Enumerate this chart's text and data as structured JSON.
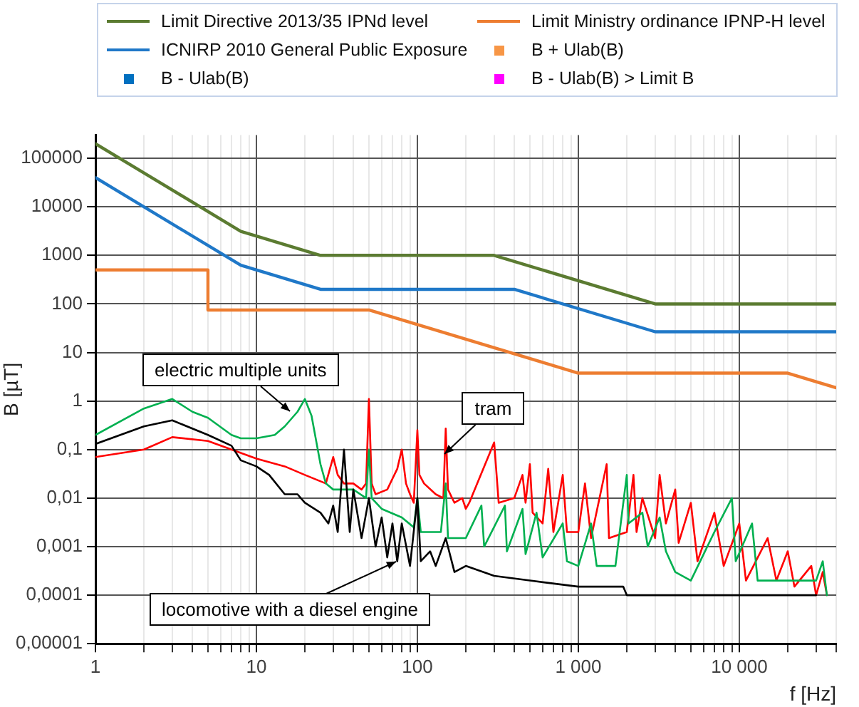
{
  "chart_data": {
    "type": "line",
    "xlabel": "f [Hz]",
    "ylabel": "B [µT]",
    "log": "xy",
    "grid": true,
    "legend": "top",
    "marker": "none",
    "xlim": [
      1,
      40000
    ],
    "ylim": [
      1e-05,
      300000
    ],
    "xticks": [
      1,
      {
        "value": 2,
        "label": null
      },
      {
        "value": 3,
        "label": null
      },
      {
        "value": 4,
        "label": null
      },
      {
        "value": 5,
        "label": null
      },
      {
        "value": 6,
        "label": null
      },
      {
        "value": 7,
        "label": null
      },
      {
        "value": 8,
        "label": null
      },
      {
        "value": 9,
        "label": null
      },
      10,
      {
        "value": 20,
        "label": null
      },
      {
        "value": 30,
        "label": null
      },
      {
        "value": 40,
        "label": null
      },
      {
        "value": 50,
        "label": null
      },
      {
        "value": 60,
        "label": null
      },
      {
        "value": 70,
        "label": null
      },
      {
        "value": 80,
        "label": null
      },
      {
        "value": 90,
        "label": null
      },
      100,
      {
        "value": 200,
        "label": null
      },
      {
        "value": 300,
        "label": null
      },
      {
        "value": 400,
        "label": null
      },
      {
        "value": 500,
        "label": null
      },
      {
        "value": 600,
        "label": null
      },
      {
        "value": 700,
        "label": null
      },
      {
        "value": 800,
        "label": null
      },
      {
        "value": 900,
        "label": null
      },
      {
        "value": 1000,
        "label": "1 000"
      },
      {
        "value": 2000,
        "label": null
      },
      {
        "value": 3000,
        "label": null
      },
      {
        "value": 4000,
        "label": null
      },
      {
        "value": 5000,
        "label": null
      },
      {
        "value": 6000,
        "label": null
      },
      {
        "value": 7000,
        "label": null
      },
      {
        "value": 8000,
        "label": null
      },
      {
        "value": 9000,
        "label": null
      },
      {
        "value": 10000,
        "label": "10 000"
      },
      {
        "value": 20000,
        "label": null
      },
      {
        "value": 30000,
        "label": null
      },
      {
        "value": 40000,
        "label": null
      }
    ],
    "yticks": [
      {
        "value": 1e-05,
        "label": "0,00001"
      },
      {
        "value": 0.0001,
        "label": "0,0001"
      },
      {
        "value": 0.001,
        "label": "0,001"
      },
      {
        "value": 0.01,
        "label": "0,01"
      },
      {
        "value": 0.1,
        "label": "0,1"
      },
      1,
      10,
      100,
      1000,
      10000,
      100000
    ],
    "series": [
      {
        "color": "#ff0000",
        "x": [
          1,
          2,
          3,
          5,
          7,
          10,
          15,
          20,
          27,
          30,
          32,
          35,
          40,
          45,
          48,
          50,
          52,
          55,
          65,
          70,
          75,
          80,
          85,
          90,
          95,
          100,
          103,
          110,
          130,
          145,
          150,
          155,
          170,
          190,
          200,
          210,
          300,
          320,
          400,
          450,
          470,
          500,
          520,
          600,
          650,
          700,
          800,
          850,
          1000,
          1100,
          1200,
          1500,
          1550,
          2000,
          2200,
          2300,
          2500,
          3000,
          3200,
          3500,
          4000,
          4200,
          5000,
          5500,
          7000,
          8000,
          10000,
          11000,
          15000,
          17000,
          20000,
          22000,
          28000,
          30000,
          33000,
          35000
        ],
        "values": [
          0.07,
          0.1,
          0.18,
          0.15,
          0.1,
          0.065,
          0.045,
          0.03,
          0.02,
          0.07,
          0.03,
          0.02,
          0.02,
          0.015,
          0.02,
          1.1,
          0.02,
          0.012,
          0.015,
          0.025,
          0.04,
          0.1,
          0.02,
          0.012,
          0.008,
          0.25,
          0.03,
          0.02,
          0.012,
          0.01,
          0.27,
          0.015,
          0.008,
          0.01,
          0.006,
          0.008,
          0.14,
          0.008,
          0.01,
          0.03,
          0.008,
          0.05,
          0.005,
          0.003,
          0.04,
          0.002,
          0.03,
          0.002,
          0.002,
          0.02,
          0.0015,
          0.05,
          0.0015,
          0.002,
          0.03,
          0.002,
          0.01,
          0.0015,
          0.03,
          0.003,
          0.015,
          0.0012,
          0.008,
          0.0005,
          0.005,
          0.0004,
          0.003,
          0.0002,
          0.0015,
          0.0002,
          0.0008,
          0.00015,
          0.0004,
          0.0001,
          0.0003,
          0.0001
        ]
      },
      {
        "color": "#00b050",
        "x": [
          1,
          2,
          3,
          4,
          5,
          7,
          8,
          10,
          13,
          15,
          18,
          20,
          22,
          25,
          27,
          30,
          40,
          48,
          50,
          52,
          60,
          80,
          95,
          100,
          105,
          140,
          150,
          155,
          200,
          250,
          260,
          350,
          360,
          450,
          470,
          550,
          600,
          800,
          850,
          1000,
          1200,
          1300,
          1700,
          2000,
          2050,
          2500,
          2700,
          3200,
          3500,
          4000,
          5000,
          7000,
          9000,
          9500,
          12000,
          13000,
          20000,
          30000,
          33000,
          35000
        ],
        "values": [
          0.2,
          0.7,
          1.1,
          0.6,
          0.45,
          0.2,
          0.17,
          0.17,
          0.2,
          0.3,
          0.6,
          1.1,
          0.5,
          0.05,
          0.02,
          0.015,
          0.015,
          0.01,
          0.1,
          0.01,
          0.006,
          0.004,
          0.0025,
          0.01,
          0.002,
          0.002,
          0.02,
          0.0015,
          0.0015,
          0.007,
          0.001,
          0.007,
          0.0008,
          0.006,
          0.0007,
          0.005,
          0.0006,
          0.003,
          0.0005,
          0.0004,
          0.003,
          0.0004,
          0.0004,
          0.03,
          0.003,
          0.005,
          0.001,
          0.004,
          0.0008,
          0.0003,
          0.0002,
          0.002,
          0.01,
          0.0005,
          0.003,
          0.0002,
          0.0002,
          0.0002,
          0.0005,
          0.0001
        ]
      },
      {
        "color": "#000000",
        "x": [
          1,
          2,
          3,
          5,
          7,
          8,
          10,
          12,
          15,
          18,
          20,
          25,
          28,
          30,
          32,
          35,
          38,
          40,
          45,
          50,
          55,
          60,
          65,
          70,
          75,
          80,
          90,
          100,
          105,
          120,
          130,
          150,
          170,
          200,
          300,
          500,
          1000,
          1900,
          2000,
          5000,
          20000,
          30000
        ],
        "values": [
          0.13,
          0.3,
          0.4,
          0.2,
          0.12,
          0.06,
          0.045,
          0.03,
          0.012,
          0.012,
          0.008,
          0.005,
          0.003,
          0.007,
          0.002,
          0.1,
          0.002,
          0.015,
          0.0015,
          0.01,
          0.001,
          0.004,
          0.0006,
          0.003,
          0.0005,
          0.003,
          0.0004,
          0.01,
          0.0005,
          0.0008,
          0.0004,
          0.0015,
          0.0003,
          0.0004,
          0.00025,
          0.0002,
          0.00015,
          0.00015,
          0.0001,
          0.0001,
          0.0001,
          0.0001
        ]
      },
      {
        "name": "Limit Directive 2013/35 IPNd level",
        "color": "#5b7b31",
        "x": [
          1,
          8,
          25,
          300,
          3000,
          40000
        ],
        "values": [
          200000,
          3125,
          1000,
          1000,
          100,
          100
        ]
      },
      {
        "name": "Limit Ministry ordinance IPNP-H level",
        "color": "#ed7d31",
        "x": [
          1,
          5,
          5,
          50,
          1000,
          20000,
          40000
        ],
        "values": [
          500,
          500,
          75,
          75,
          3.75,
          3.75,
          1.875
        ]
      },
      {
        "name": "ICNIRP 2010 General Public Exposure",
        "color": "#1f78c8",
        "x": [
          1,
          8,
          25,
          400,
          3000,
          40000
        ],
        "values": [
          40000,
          625,
          200,
          200,
          26.7,
          26.7
        ]
      },
      {
        "name": "B + Ulab(B)",
        "color": "#f79646",
        "type": "scatter",
        "marker": "square"
      },
      {
        "name": "B - Ulab(B)",
        "color": "#0070c0",
        "type": "scatter",
        "marker": "square"
      },
      {
        "name": "B - Ulab(B) > Limit B",
        "color": "#ff00ff",
        "type": "scatter",
        "marker": "square"
      }
    ],
    "annotations": [
      {
        "text": "electric multiple units",
        "x": 16,
        "y": 0.6
      },
      {
        "text": "tram",
        "x": 148,
        "y": 0.08
      },
      {
        "text": "locomotive with a diesel engine",
        "x": 73,
        "y": 0.0005
      }
    ]
  }
}
